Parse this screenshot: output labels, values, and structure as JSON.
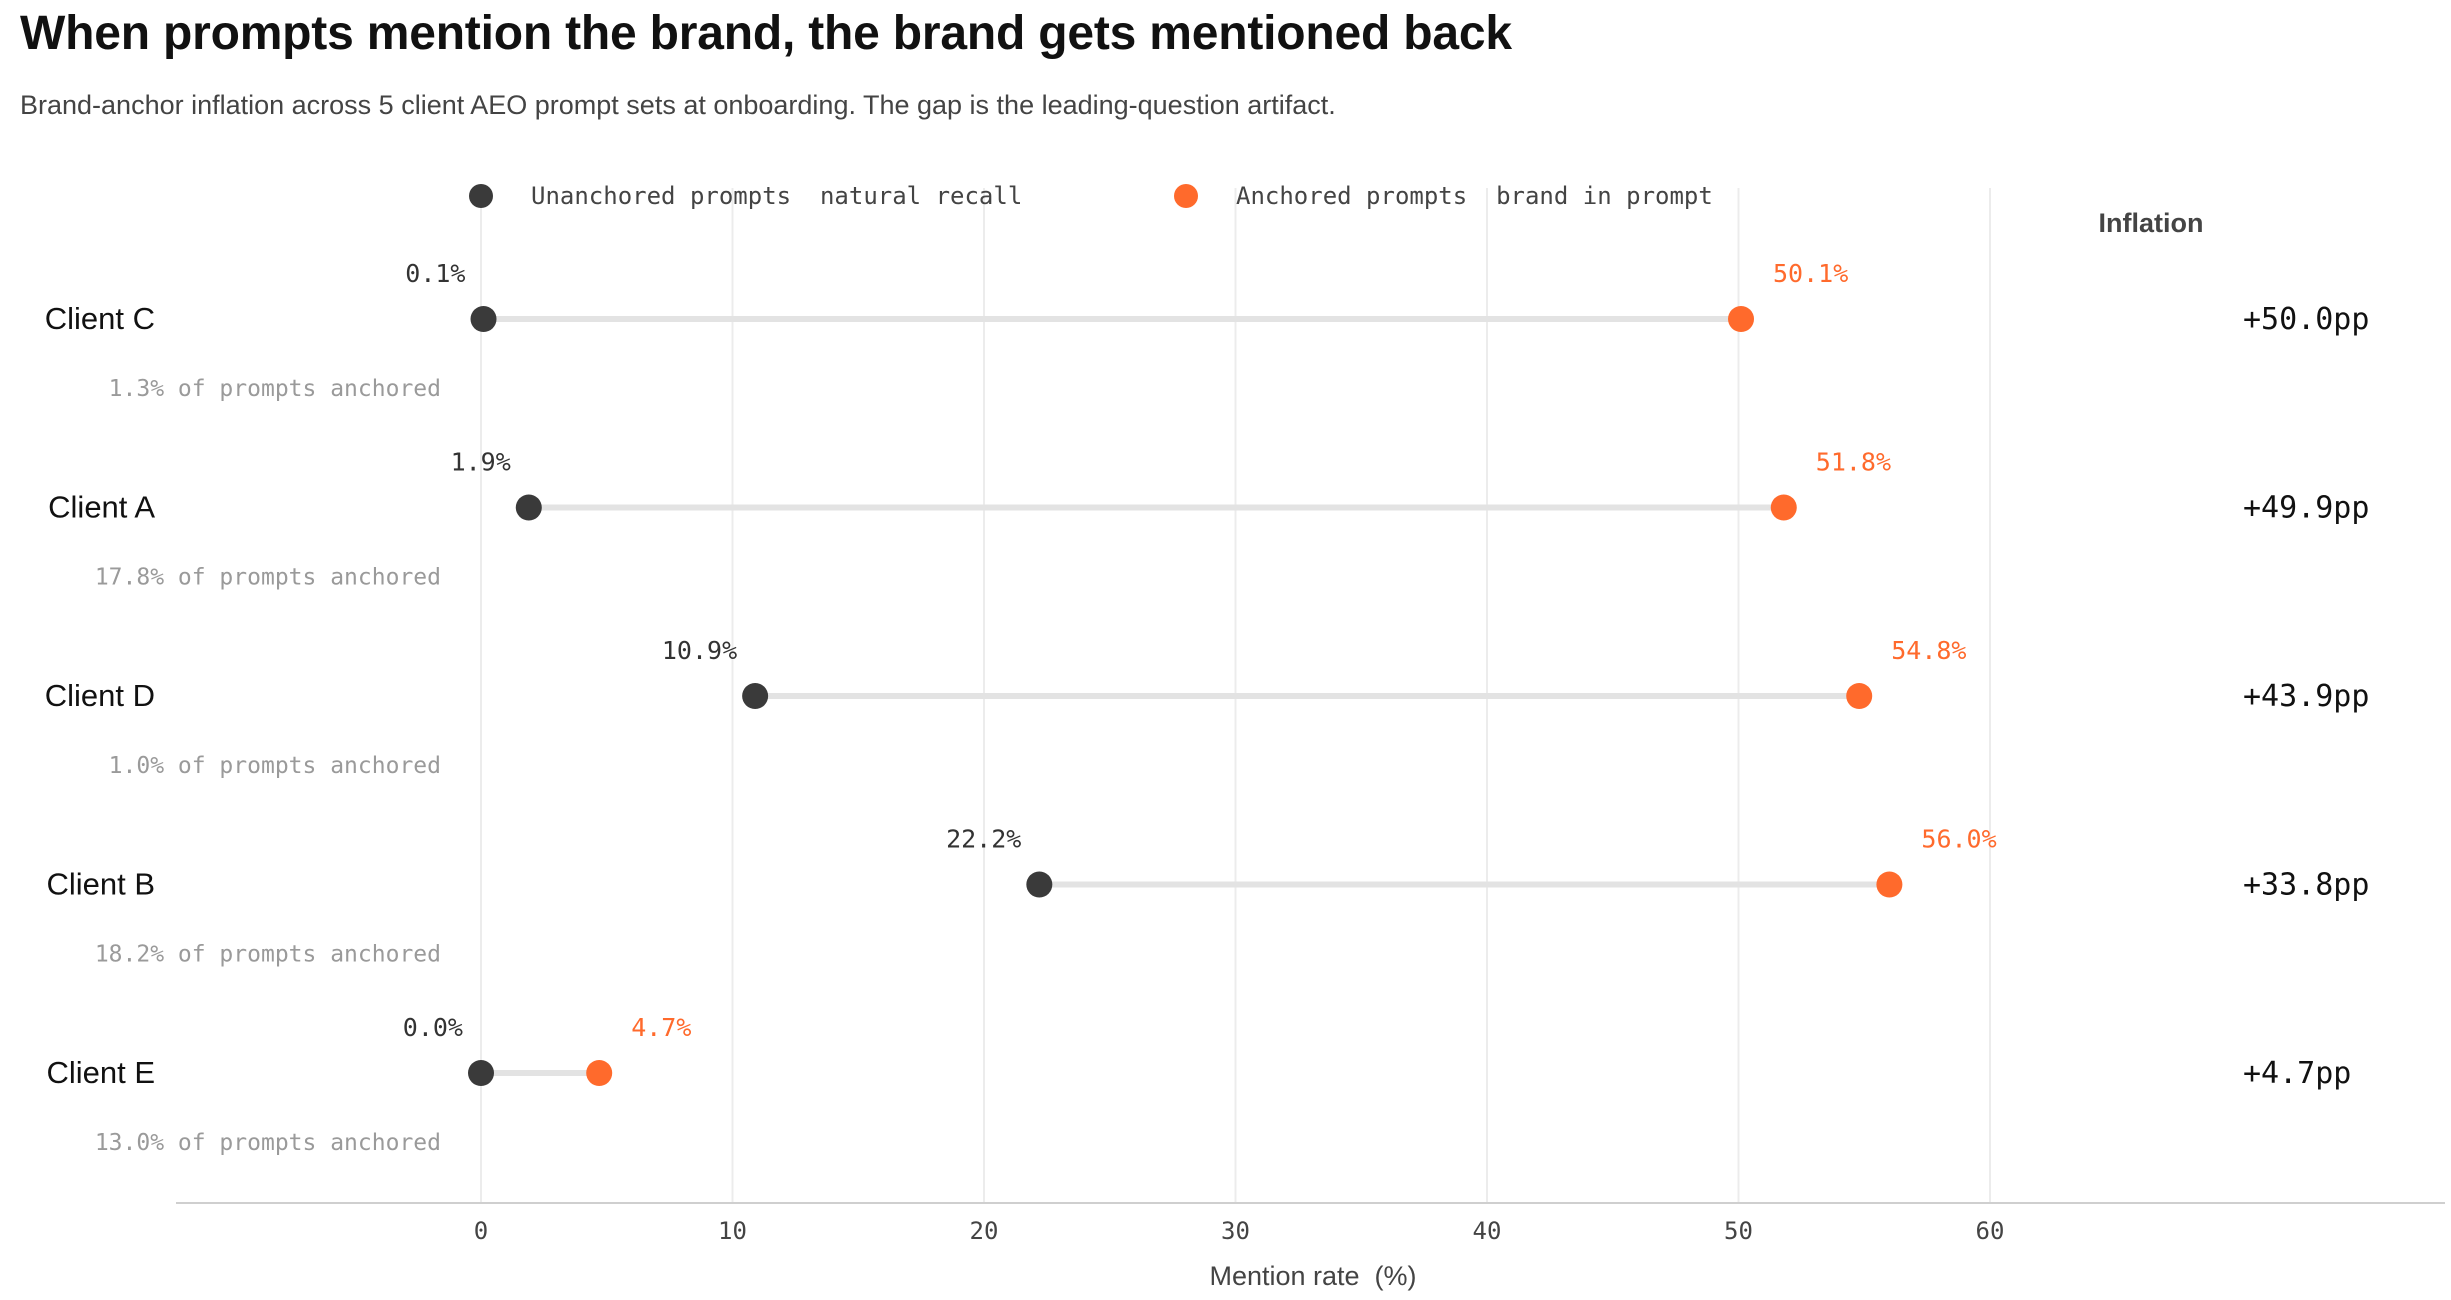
{
  "header": {
    "title": "When prompts mention the brand, the brand gets mentioned back",
    "subtitle": "Brand-anchor inflation across 5 client AEO prompt sets at onboarding. The gap is the leading-question artifact."
  },
  "legend": [
    {
      "label": "Unanchored prompts  natural recall",
      "color": "#3a3a3a"
    },
    {
      "label": "Anchored prompts  brand in prompt",
      "color": "#ff6a2c"
    }
  ],
  "colors": {
    "unanchored": "#3a3a3a",
    "anchored": "#ff6a2c",
    "connector": "#e3e3e3",
    "grid": "#ececec",
    "sublabel": "#9a9a9a"
  },
  "chart_data": {
    "type": "dumbbell",
    "title": "When prompts mention the brand, the brand gets mentioned back",
    "xlabel": "Mention rate  (%)",
    "xlim": [
      -12,
      75
    ],
    "xticks": [
      0,
      10,
      20,
      30,
      40,
      50,
      60
    ],
    "inflation_header": "Inflation",
    "rows": [
      {
        "client": "Client C",
        "unanchored": 0.1,
        "anchored": 50.1,
        "unanchored_label": "0.1%",
        "anchored_label": "50.1%",
        "inflation": "+50.0pp",
        "share": "1.3% of prompts anchored"
      },
      {
        "client": "Client A",
        "unanchored": 1.9,
        "anchored": 51.8,
        "unanchored_label": "1.9%",
        "anchored_label": "51.8%",
        "inflation": "+49.9pp",
        "share": "17.8% of prompts anchored"
      },
      {
        "client": "Client D",
        "unanchored": 10.9,
        "anchored": 54.8,
        "unanchored_label": "10.9%",
        "anchored_label": "54.8%",
        "inflation": "+43.9pp",
        "share": "1.0% of prompts anchored"
      },
      {
        "client": "Client B",
        "unanchored": 22.2,
        "anchored": 56.0,
        "unanchored_label": "22.2%",
        "anchored_label": "56.0%",
        "inflation": "+33.8pp",
        "share": "18.2% of prompts anchored"
      },
      {
        "client": "Client E",
        "unanchored": 0.0,
        "anchored": 4.7,
        "unanchored_label": "0.0%",
        "anchored_label": "4.7%",
        "inflation": "+4.7pp",
        "share": "13.0% of prompts anchored"
      }
    ]
  }
}
